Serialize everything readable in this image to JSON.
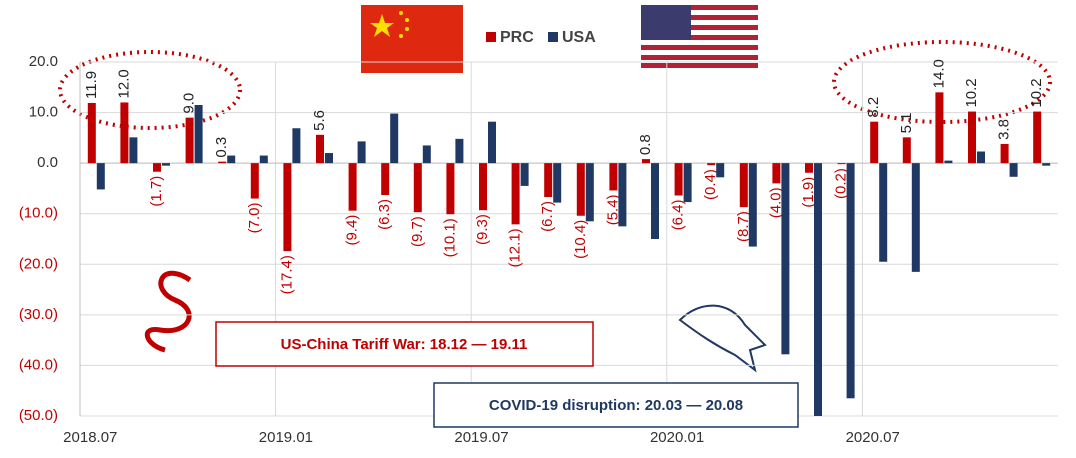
{
  "chart_data": {
    "type": "bar",
    "categories": [
      "2018.07",
      null,
      null,
      null,
      null,
      null,
      "2019.01",
      null,
      null,
      null,
      null,
      null,
      "2019.07",
      null,
      null,
      null,
      null,
      null,
      "2020.01",
      null,
      null,
      null,
      null,
      null,
      "2020.07",
      null,
      null,
      null,
      null,
      null
    ],
    "series": [
      {
        "name": "PRC",
        "color": "#c00000",
        "values": [
          11.9,
          12.0,
          -1.7,
          9.0,
          0.3,
          -7.0,
          -17.4,
          5.6,
          -9.4,
          -6.3,
          -9.7,
          -10.1,
          -9.3,
          -12.1,
          -6.7,
          -10.4,
          -5.4,
          0.8,
          -6.4,
          -0.4,
          -8.7,
          -4.0,
          -1.9,
          -0.2,
          8.2,
          5.1,
          14.0,
          10.2,
          3.8,
          10.2
        ],
        "value_labels": [
          "11.9",
          "12.0",
          "(1.7)",
          "9.0",
          "0.3",
          "(7.0)",
          "(17.4)",
          "5.6",
          "(9.4)",
          "(6.3)",
          "(9.7)",
          "(10.1)",
          "(9.3)",
          "(12.1)",
          "(6.7)",
          "(10.4)",
          "(5.4)",
          "0.8",
          "(6.4)",
          "(0.4)",
          "(8.7)",
          "(4.0)",
          "(1.9)",
          "(0.2)",
          "8.2",
          "5.1",
          "14.0",
          "10.2",
          "3.8",
          "10.2"
        ]
      },
      {
        "name": "USA",
        "color": "#1f3864",
        "values": [
          -5.2,
          5.1,
          -0.5,
          11.5,
          1.5,
          1.5,
          6.9,
          2.0,
          4.3,
          9.8,
          3.5,
          4.8,
          8.2,
          -4.5,
          -7.8,
          -11.5,
          -12.5,
          -15.0,
          -7.7,
          -2.8,
          -16.5,
          -37.8,
          -50.0,
          -46.5,
          -19.5,
          -21.5,
          0.5,
          2.3,
          -2.7,
          -0.5
        ]
      }
    ],
    "ylim": [
      -50,
      20
    ],
    "yticks": [
      {
        "value": -50,
        "label": "(50.0)"
      },
      {
        "value": -40,
        "label": "(40.0)"
      },
      {
        "value": -30,
        "label": "(30.0)"
      },
      {
        "value": -20,
        "label": "(20.0)"
      },
      {
        "value": -10,
        "label": "(10.0)"
      },
      {
        "value": 0,
        "label": "0.0"
      },
      {
        "value": 10,
        "label": "10.0"
      },
      {
        "value": 20,
        "label": "20.0"
      }
    ],
    "grid": true,
    "legend": "top",
    "annotations": [
      "US-China Tariff War: 18.12 — 19.11",
      "COVID-19 disruption: 20.03 — 20.08"
    ]
  }
}
